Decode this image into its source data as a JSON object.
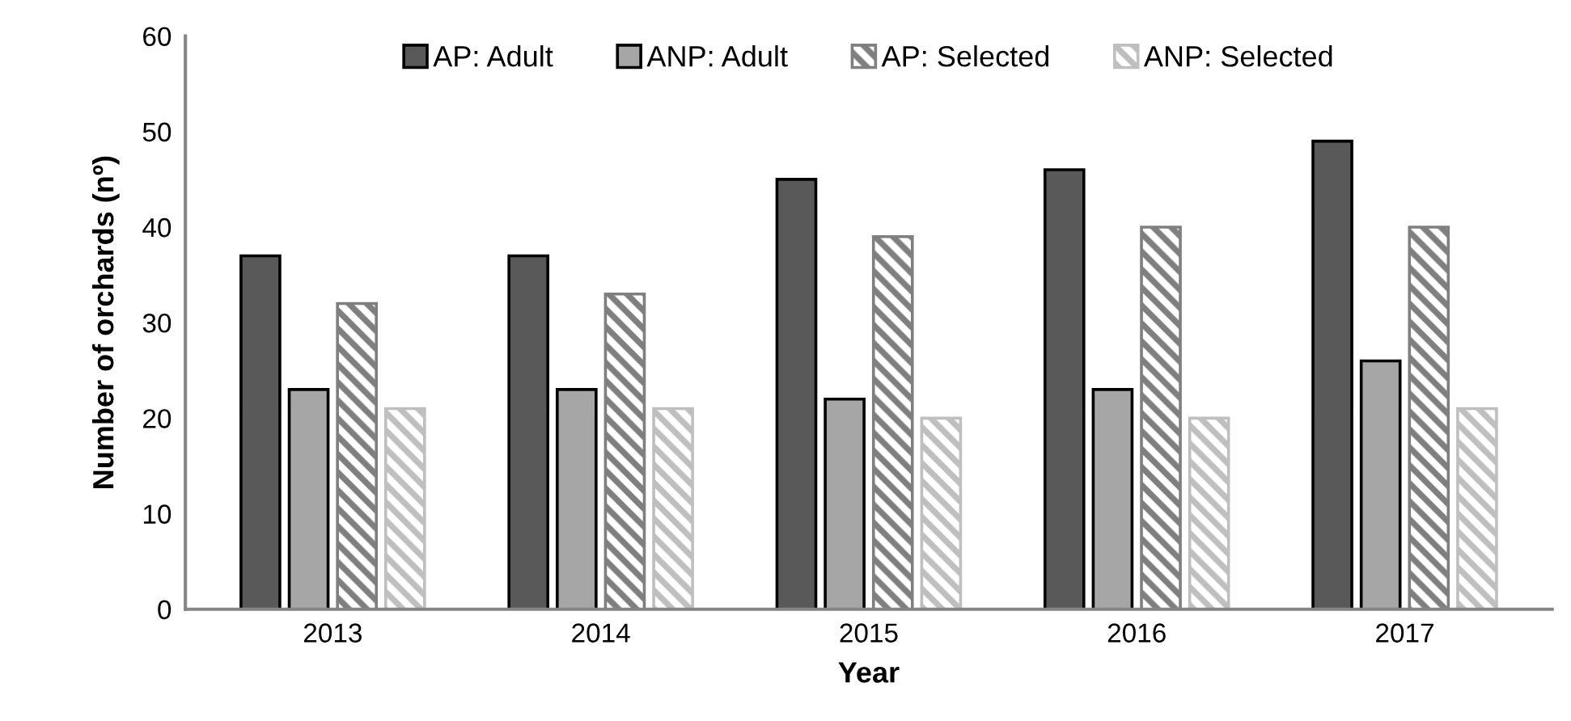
{
  "chart_data": {
    "type": "bar",
    "xlabel": "Year",
    "ylabel": "Number of orchards (nº)",
    "categories": [
      "2013",
      "2014",
      "2015",
      "2016",
      "2017"
    ],
    "series": [
      {
        "name": "AP: Adult",
        "color": "#595959",
        "values": [
          37,
          37,
          45,
          46,
          49
        ]
      },
      {
        "name": "ANP: Adult",
        "color": "#a6a6a6",
        "values": [
          23,
          23,
          22,
          23,
          26
        ]
      },
      {
        "name": "AP: Selected",
        "color": "#7f7f7f",
        "values": [
          32,
          33,
          39,
          40,
          40
        ]
      },
      {
        "name": "ANP: Selected",
        "color": "#bfbfbf",
        "values": [
          21,
          21,
          20,
          20,
          21
        ]
      }
    ],
    "ylim": [
      0,
      60
    ],
    "yticks": [
      0,
      10,
      20,
      30,
      40,
      50,
      60
    ],
    "grid": false,
    "legend": "top"
  }
}
